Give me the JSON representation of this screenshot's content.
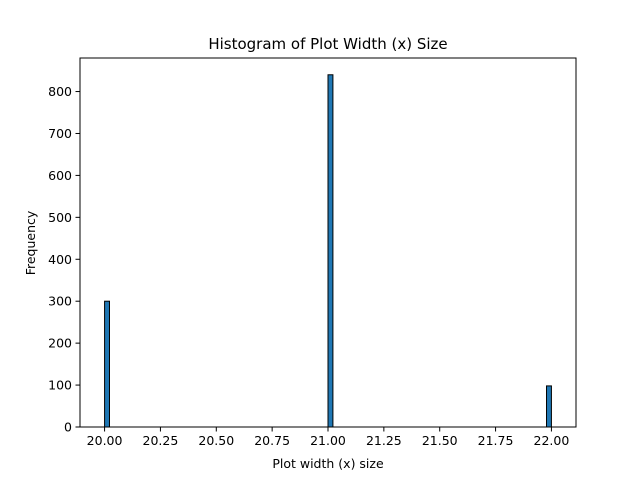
{
  "chart_data": {
    "type": "bar",
    "title": "Histogram of Plot Width (x) Size",
    "xlabel": "Plot width (x) size",
    "ylabel": "Frequency",
    "xlim": [
      19.89,
      22.11
    ],
    "ylim": [
      0,
      880
    ],
    "bin_width": 0.022,
    "bars": [
      {
        "x_start": 20.0,
        "x_end": 20.022,
        "value": 300
      },
      {
        "x_start": 21.0,
        "x_end": 21.022,
        "value": 840
      },
      {
        "x_start": 21.978,
        "x_end": 22.0,
        "value": 98
      }
    ],
    "x_ticks": [
      20.0,
      20.25,
      20.5,
      20.75,
      21.0,
      21.25,
      21.5,
      21.75,
      22.0
    ],
    "x_tick_labels": [
      "20.00",
      "20.25",
      "20.50",
      "20.75",
      "21.00",
      "21.25",
      "21.50",
      "21.75",
      "22.00"
    ],
    "y_ticks": [
      0,
      100,
      200,
      300,
      400,
      500,
      600,
      700,
      800
    ],
    "y_tick_labels": [
      "0",
      "100",
      "200",
      "300",
      "400",
      "500",
      "600",
      "700",
      "800"
    ],
    "grid": false,
    "legend": false,
    "colors": {
      "bar_fill": "#1f77b4",
      "bar_edge": "#000000",
      "axis": "#000000",
      "background": "#ffffff"
    }
  }
}
